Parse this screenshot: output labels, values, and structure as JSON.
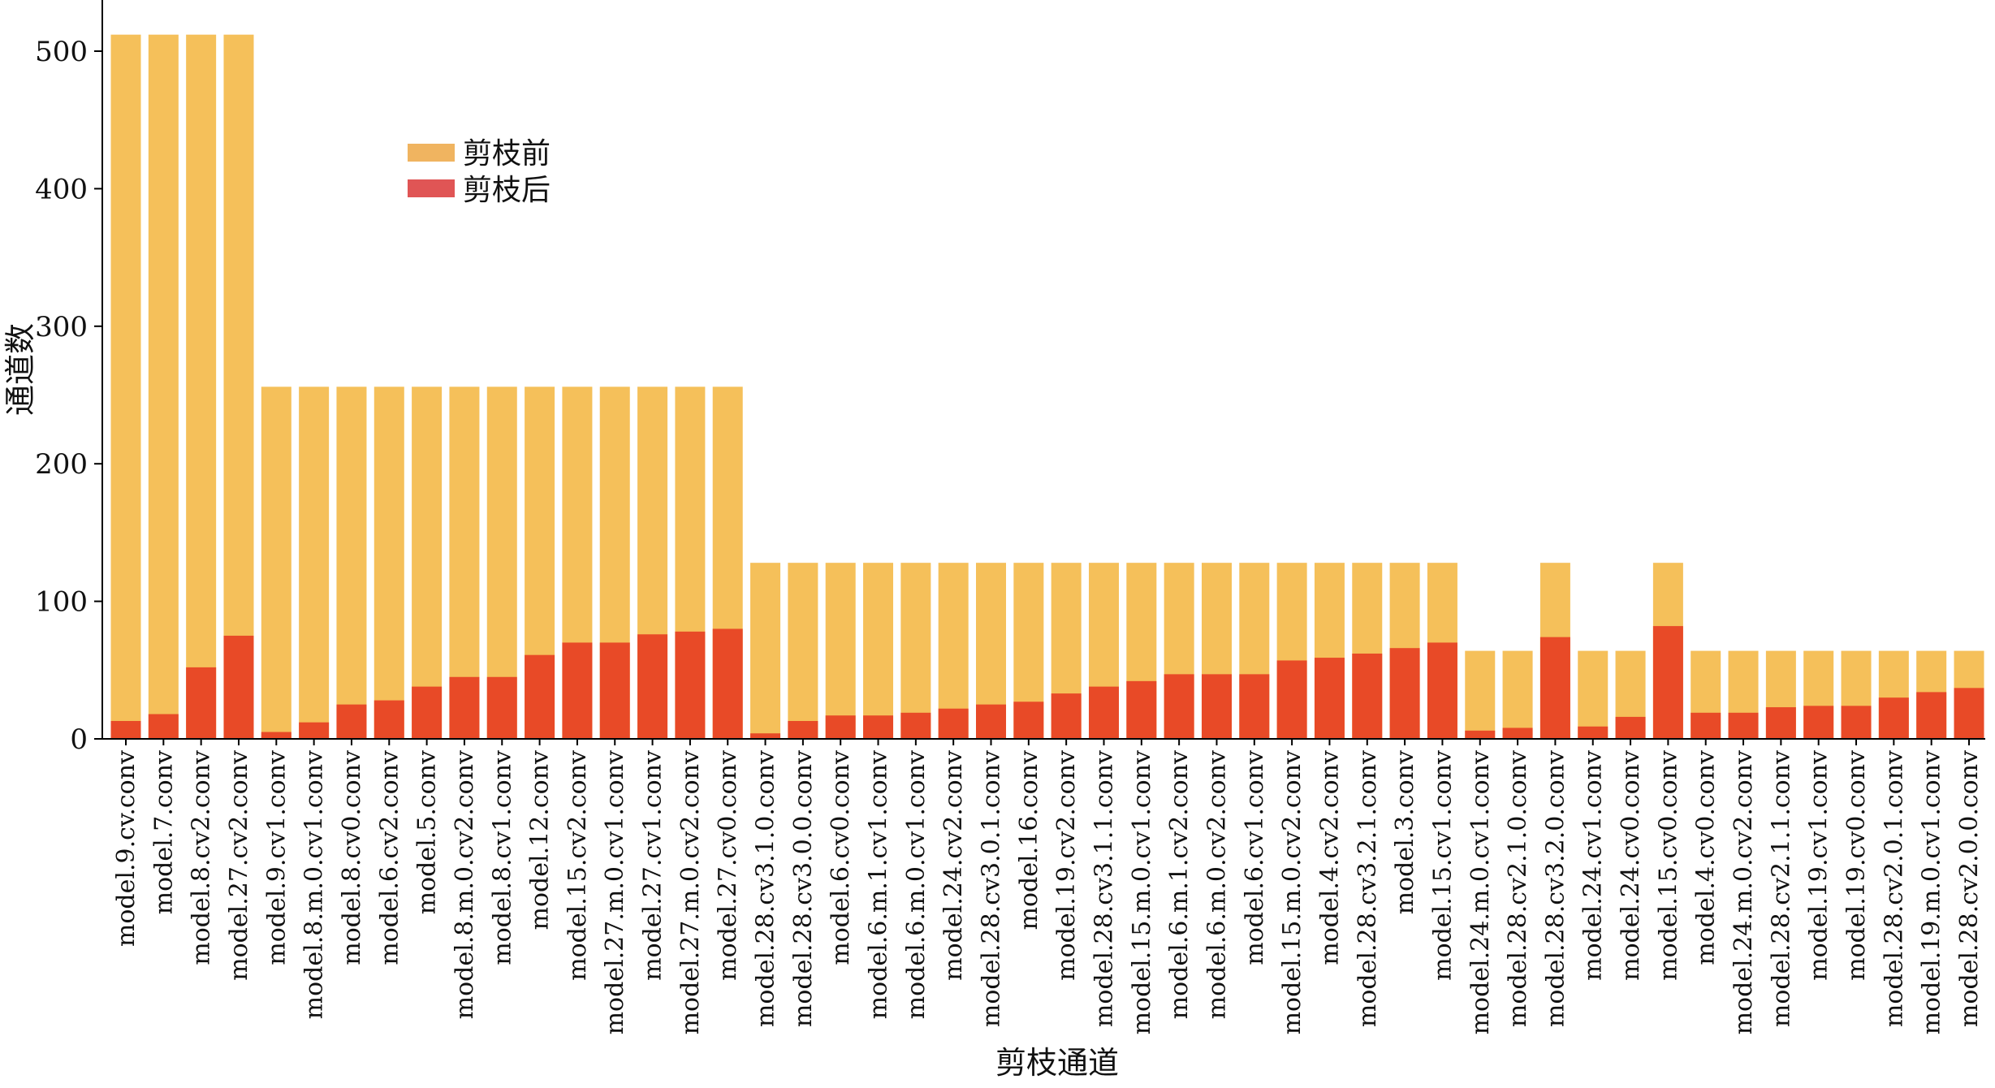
{
  "chart_data": {
    "type": "bar",
    "xlabel": "剪枝通道",
    "ylabel": "通道数",
    "ylim": [
      0,
      512
    ],
    "yticks": [
      0,
      100,
      200,
      300,
      400,
      500
    ],
    "legend_position": "upper-left inside",
    "categories": [
      "model.9.cv.conv",
      "model.7.conv",
      "model.8.cv2.conv",
      "model.27.cv2.conv",
      "model.9.cv1.conv",
      "model.8.m.0.cv1.conv",
      "model.8.cv0.conv",
      "model.6.cv2.conv",
      "model.5.conv",
      "model.8.m.0.cv2.conv",
      "model.8.cv1.conv",
      "model.12.conv",
      "model.15.cv2.conv",
      "model.27.m.0.cv1.conv",
      "model.27.cv1.conv",
      "model.27.m.0.cv2.conv",
      "model.27.cv0.conv",
      "model.28.cv3.1.0.conv",
      "model.28.cv3.0.0.conv",
      "model.6.cv0.conv",
      "model.6.m.1.cv1.conv",
      "model.6.m.0.cv1.conv",
      "model.24.cv2.conv",
      "model.28.cv3.0.1.conv",
      "model.16.conv",
      "model.19.cv2.conv",
      "model.28.cv3.1.1.conv",
      "model.15.m.0.cv1.conv",
      "model.6.m.1.cv2.conv",
      "model.6.m.0.cv2.conv",
      "model.6.cv1.conv",
      "model.15.m.0.cv2.conv",
      "model.4.cv2.conv",
      "model.28.cv3.2.1.conv",
      "model.3.conv",
      "model.15.cv1.conv",
      "model.24.m.0.cv1.conv",
      "model.28.cv2.1.0.conv",
      "model.28.cv3.2.0.conv",
      "model.24.cv1.conv",
      "model.24.cv0.conv",
      "model.15.cv0.conv",
      "model.4.cv0.conv",
      "model.24.m.0.cv2.conv",
      "model.28.cv2.1.1.conv",
      "model.19.cv1.conv",
      "model.19.cv0.conv",
      "model.28.cv2.0.1.conv",
      "model.19.m.0.cv1.conv",
      "model.28.cv2.0.0.conv"
    ],
    "series": [
      {
        "name": "剪枝前",
        "color": "#F5C05A",
        "values": [
          512,
          512,
          512,
          512,
          256,
          256,
          256,
          256,
          256,
          256,
          256,
          256,
          256,
          256,
          256,
          256,
          256,
          128,
          128,
          128,
          128,
          128,
          128,
          128,
          128,
          128,
          128,
          128,
          128,
          128,
          128,
          128,
          128,
          128,
          128,
          128,
          64,
          64,
          128,
          64,
          64,
          128,
          64,
          64,
          64,
          64,
          64,
          64,
          64,
          64
        ]
      },
      {
        "name": "剪枝后",
        "color": "#E84A27",
        "legend_color": "#E05555",
        "values": [
          13,
          18,
          52,
          75,
          5,
          12,
          25,
          28,
          38,
          45,
          45,
          61,
          70,
          70,
          76,
          78,
          80,
          4,
          13,
          17,
          17,
          19,
          22,
          25,
          27,
          33,
          38,
          42,
          47,
          47,
          47,
          57,
          59,
          62,
          66,
          70,
          6,
          8,
          74,
          9,
          16,
          82,
          19,
          19,
          23,
          24,
          24,
          30,
          34,
          37
        ]
      }
    ]
  },
  "legend_swatch_before": "#F0B460"
}
